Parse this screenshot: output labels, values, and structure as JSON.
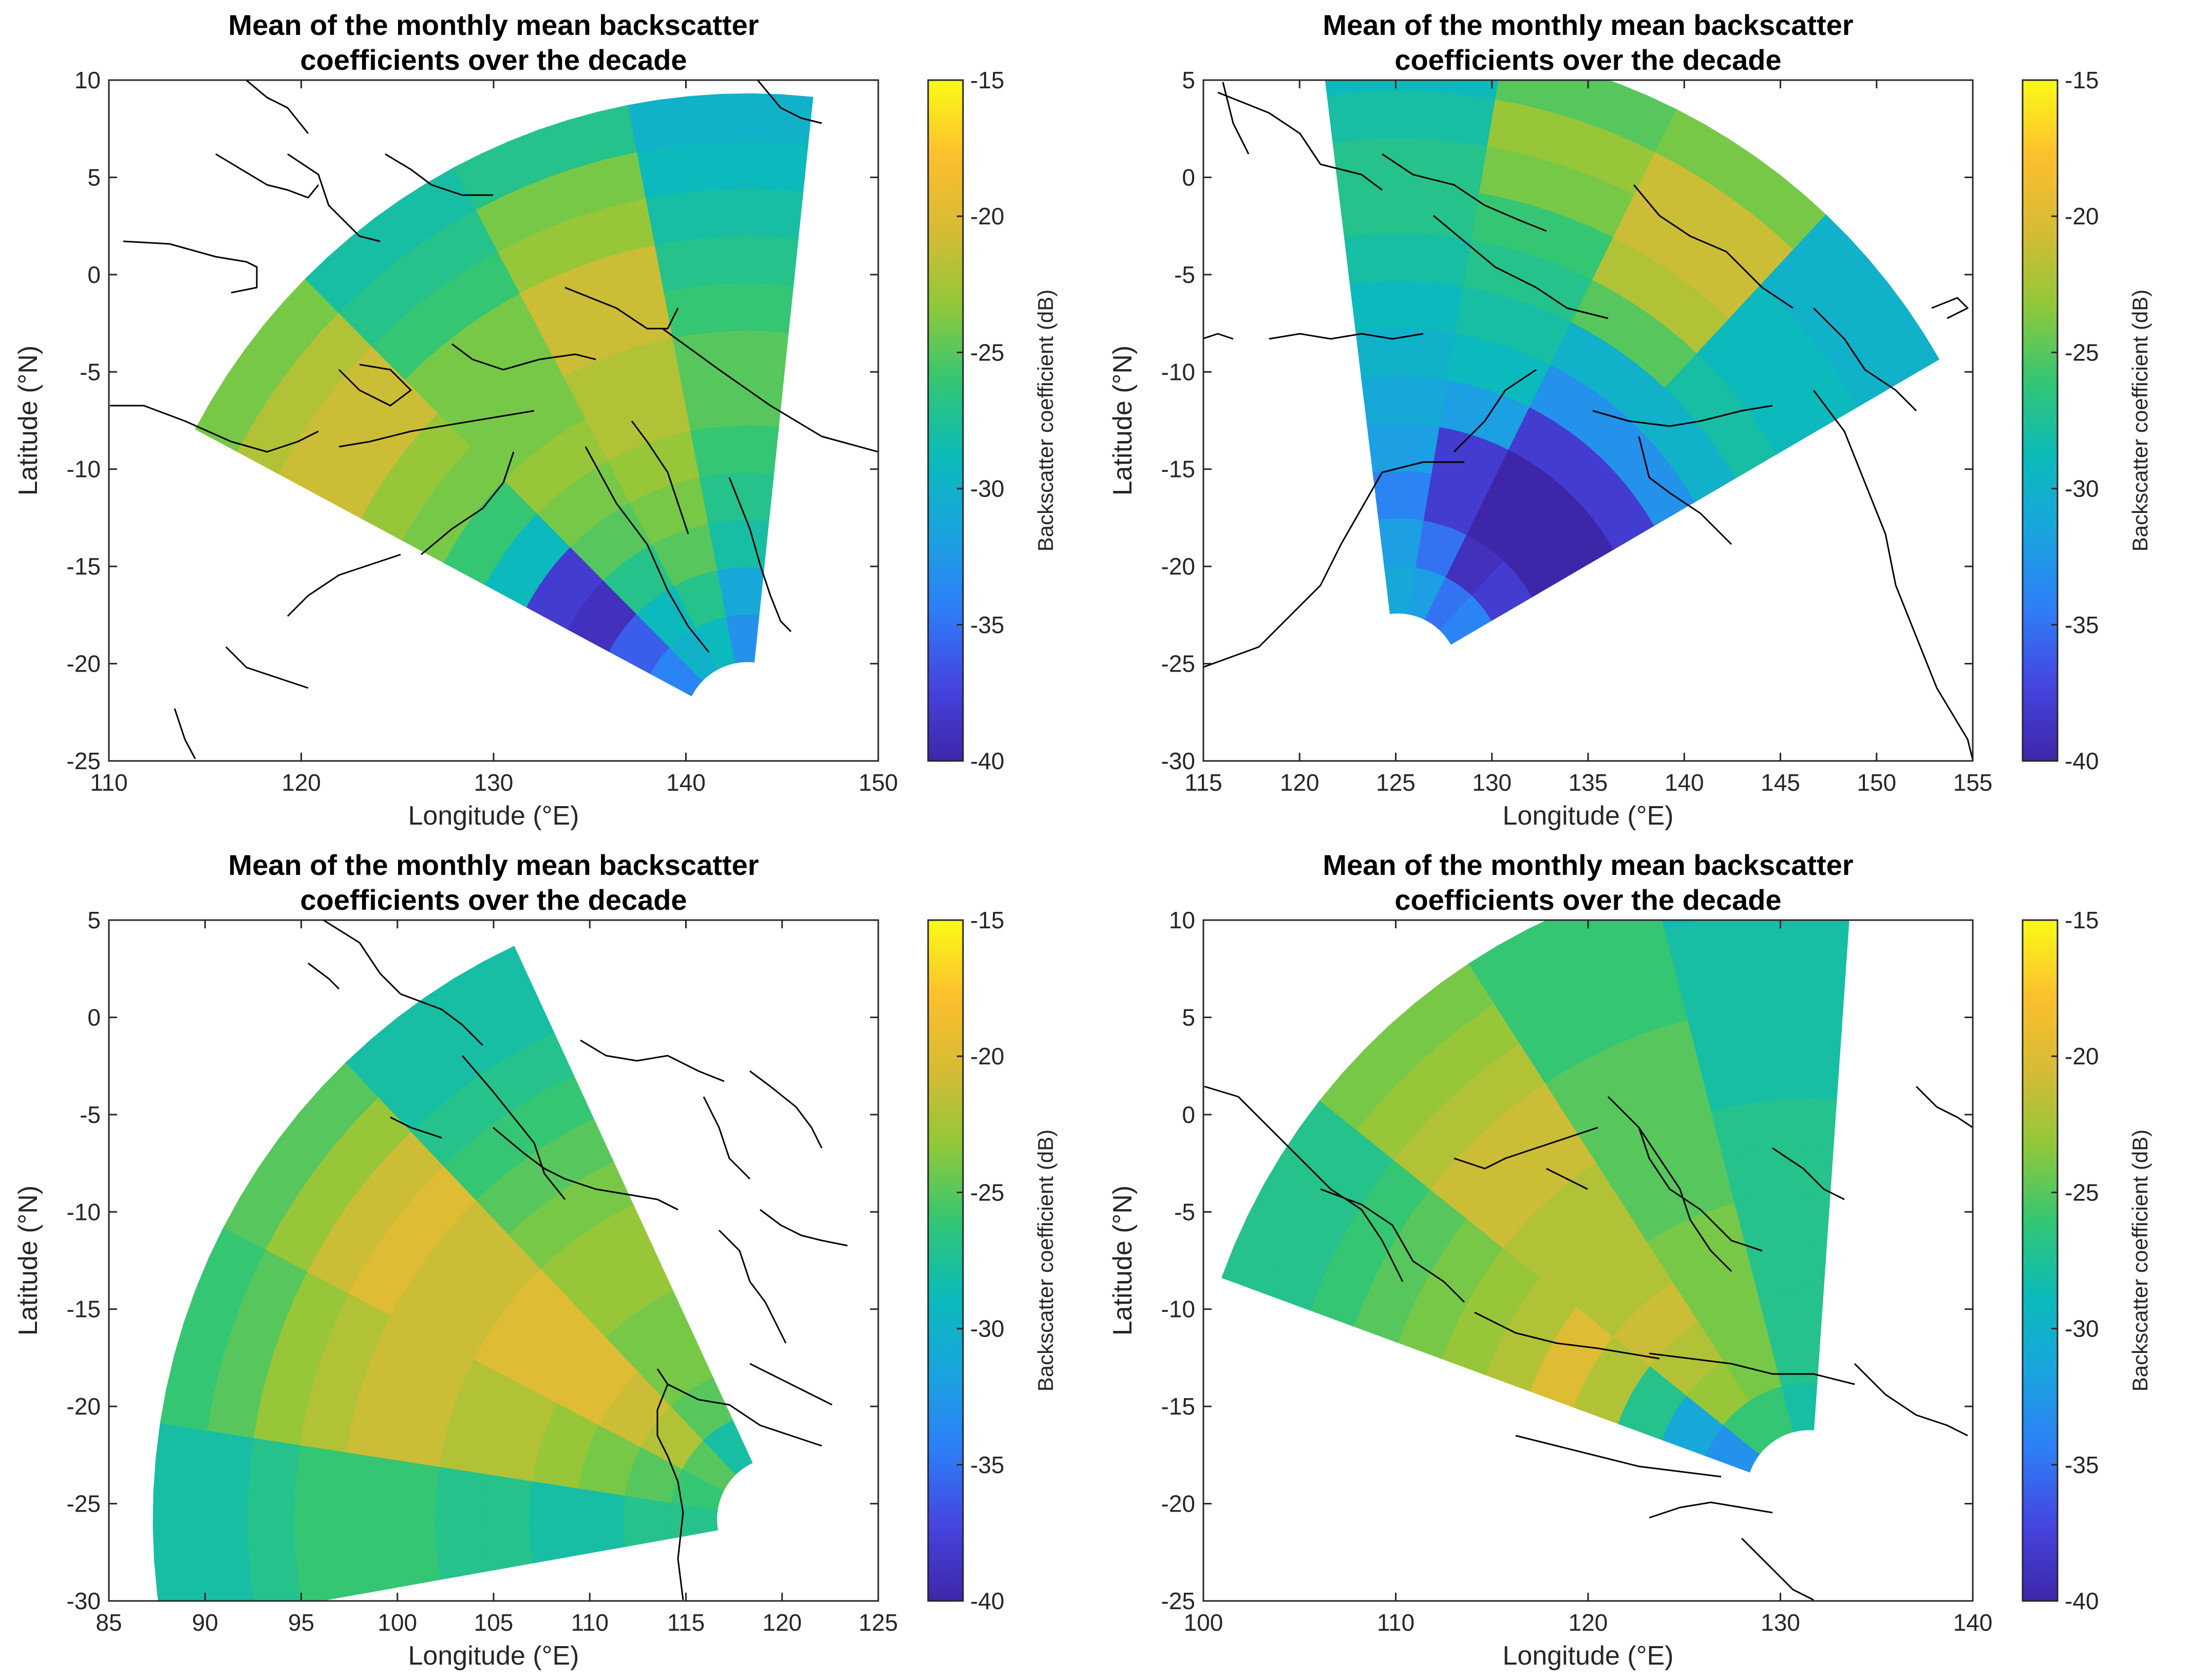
{
  "figure": {
    "colorbar_label": "Backscatter coefficient (dB)",
    "colormap": [
      "#3e26a8",
      "#4545e0",
      "#2e7ef7",
      "#1aa3e0",
      "#0bbaba",
      "#31c675",
      "#8fc83a",
      "#d6bb34",
      "#fcbf2e",
      "#f9fb15"
    ]
  },
  "chart_data": [
    {
      "type": "heatmap",
      "title_line1": "Mean of the monthly mean backscatter",
      "title_line2": "coefficients over the decade",
      "xlabel": "Longitude (°E)",
      "ylabel": "Latitude (°N)",
      "xlim": [
        110,
        150
      ],
      "ylim": [
        -25,
        10
      ],
      "xticks": [
        110,
        120,
        130,
        140,
        150
      ],
      "yticks": [
        -25,
        -20,
        -15,
        -10,
        -5,
        0,
        5,
        10
      ],
      "clim": [
        -40,
        -15
      ],
      "cticks": [
        -40,
        -35,
        -30,
        -25,
        -20,
        -15
      ],
      "fan": {
        "origin": [
          143.2,
          -23.2
        ],
        "r_inner": 3.3,
        "r_outer": 32.5,
        "az_start": -62,
        "az_end": 6
      },
      "sector_values_dB": [
        [
          -34,
          -36,
          -39,
          -38,
          -29,
          -26,
          -24,
          -23,
          -21,
          -21,
          -22,
          -24
        ],
        [
          -30,
          -29,
          -27,
          -25,
          -24,
          -23,
          -24,
          -24,
          -24,
          -26,
          -27,
          -28
        ],
        [
          -29,
          -27,
          -25,
          -24,
          -23,
          -22,
          -22,
          -21,
          -21,
          -23,
          -24,
          -27
        ],
        [
          -33,
          -31,
          -28,
          -27,
          -26,
          -25,
          -25,
          -26,
          -27,
          -28,
          -29,
          -30
        ]
      ]
    },
    {
      "type": "heatmap",
      "title_line1": "Mean of the monthly mean backscatter",
      "title_line2": "coefficients over the decade",
      "xlabel": "Longitude (°E)",
      "ylabel": "Latitude (°N)",
      "xlim": [
        115,
        155
      ],
      "ylim": [
        -30,
        5
      ],
      "xticks": [
        115,
        120,
        125,
        130,
        135,
        140,
        145,
        150,
        155
      ],
      "yticks": [
        -30,
        -25,
        -20,
        -15,
        -10,
        -5,
        0,
        5
      ],
      "clim": [
        -40,
        -15
      ],
      "cticks": [
        -40,
        -35,
        -30,
        -25,
        -20,
        -15
      ],
      "fan": {
        "origin": [
          125.1,
          -25.6
        ],
        "r_inner": 3.2,
        "r_outer": 32.5,
        "az_start": -7,
        "az_end": 60
      },
      "sector_values_dB": [
        [
          -31,
          -32,
          -34,
          -32,
          -31,
          -30,
          -29,
          -28,
          -27,
          -27,
          -28,
          -29
        ],
        [
          -32,
          -35,
          -38,
          -38,
          -32,
          -29,
          -28,
          -27,
          -26,
          -24,
          -23,
          -25
        ],
        [
          -35,
          -39,
          -40,
          -40,
          -38,
          -33,
          -30,
          -25,
          -22,
          -21,
          -21,
          -24
        ],
        [
          -34,
          -38,
          -40,
          -40,
          -38,
          -33,
          -30,
          -28,
          -29,
          -29,
          -30,
          -30
        ]
      ]
    },
    {
      "type": "heatmap",
      "title_line1": "Mean of the monthly mean backscatter",
      "title_line2": "coefficients over the decade",
      "xlabel": "Longitude (°E)",
      "ylabel": "Latitude (°N)",
      "xlim": [
        85,
        125
      ],
      "ylim": [
        -30,
        5
      ],
      "xticks": [
        85,
        90,
        95,
        100,
        105,
        110,
        115,
        120,
        125
      ],
      "yticks": [
        -30,
        -25,
        -20,
        -15,
        -10,
        -5,
        0,
        5
      ],
      "clim": [
        -40,
        -15
      ],
      "cticks": [
        -40,
        -35,
        -30,
        -25,
        -20,
        -15
      ],
      "fan": {
        "origin": [
          119.8,
          -25.8
        ],
        "r_inner": 3.2,
        "r_outer": 32.5,
        "az_start": -100,
        "az_end": -25
      },
      "sector_values_dB": [
        [
          -27,
          -27,
          -28,
          -28,
          -27,
          -27,
          -26,
          -26,
          -26,
          -27,
          -28,
          -28
        ],
        [
          -26,
          -25,
          -24,
          -23,
          -22,
          -22,
          -21,
          -21,
          -22,
          -23,
          -25,
          -26
        ],
        [
          -25,
          -22,
          -21,
          -20,
          -20,
          -20,
          -21,
          -21,
          -20,
          -21,
          -23,
          -25
        ],
        [
          -28,
          -25,
          -24,
          -24,
          -23,
          -23,
          -24,
          -25,
          -26,
          -27,
          -28,
          -28
        ]
      ]
    },
    {
      "type": "heatmap",
      "title_line1": "Mean of the monthly mean backscatter",
      "title_line2": "coefficients over the decade",
      "xlabel": "Longitude (°E)",
      "ylabel": "Latitude (°N)",
      "xlim": [
        100,
        140
      ],
      "ylim": [
        -25,
        10
      ],
      "xticks": [
        100,
        110,
        120,
        130,
        140
      ],
      "yticks": [
        -25,
        -20,
        -15,
        -10,
        -5,
        0,
        5,
        10
      ],
      "clim": [
        -40,
        -15
      ],
      "cticks": [
        -40,
        -35,
        -30,
        -25,
        -20,
        -15
      ],
      "fan": {
        "origin": [
          131.5,
          -19.5
        ],
        "r_inner": 3.3,
        "r_outer": 32.5,
        "az_start": -70,
        "az_end": 4
      },
      "sector_values_dB": [
        [
          -33,
          -31,
          -27,
          -22,
          -20,
          -22,
          -23,
          -24,
          -25,
          -26,
          -27,
          -27
        ],
        [
          -26,
          -23,
          -22,
          -21,
          -22,
          -22,
          -22,
          -21,
          -21,
          -22,
          -23,
          -24
        ],
        [
          -26,
          -24,
          -24,
          -24,
          -24,
          -25,
          -25,
          -25,
          -25,
          -26,
          -26,
          -26
        ],
        [
          -28,
          -27,
          -27,
          -27,
          -27,
          -27,
          -27,
          -28,
          -28,
          -28,
          -28,
          -29
        ]
      ]
    }
  ]
}
